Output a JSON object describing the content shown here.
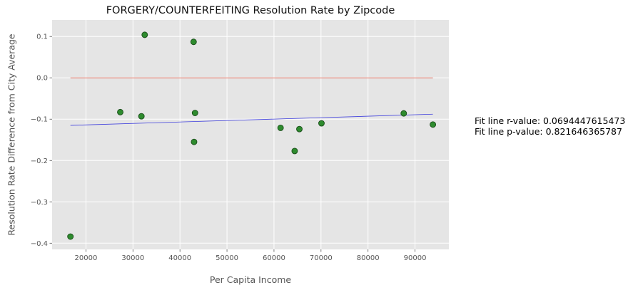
{
  "chart_data": {
    "type": "scatter",
    "title": "FORGERY/COUNTERFEITING Resolution Rate by Zipcode",
    "xlabel": "Per Capita Income",
    "ylabel": "Resolution Rate Difference from City Average",
    "xlim": [
      12800,
      97200
    ],
    "ylim": [
      -0.415,
      0.14
    ],
    "x_ticks": [
      20000,
      30000,
      40000,
      50000,
      60000,
      70000,
      80000,
      90000
    ],
    "x_tick_labels": [
      "20000",
      "30000",
      "40000",
      "50000",
      "60000",
      "70000",
      "80000",
      "90000"
    ],
    "y_ticks": [
      0.1,
      0.0,
      -0.1,
      -0.2,
      -0.3,
      -0.4
    ],
    "y_tick_labels": [
      "0.1",
      "0.0",
      "−0.1",
      "−0.2",
      "−0.3",
      "−0.4"
    ],
    "grid": true,
    "points": [
      {
        "x": 16700,
        "y": -0.384
      },
      {
        "x": 27300,
        "y": -0.083
      },
      {
        "x": 31800,
        "y": -0.093
      },
      {
        "x": 32500,
        "y": 0.104
      },
      {
        "x": 42900,
        "y": 0.087
      },
      {
        "x": 43000,
        "y": -0.155
      },
      {
        "x": 43200,
        "y": -0.085
      },
      {
        "x": 61400,
        "y": -0.121
      },
      {
        "x": 64400,
        "y": -0.177
      },
      {
        "x": 65400,
        "y": -0.124
      },
      {
        "x": 70100,
        "y": -0.11
      },
      {
        "x": 87600,
        "y": -0.086
      },
      {
        "x": 93800,
        "y": -0.113
      }
    ],
    "reference_line": {
      "x": [
        16700,
        93800
      ],
      "y": [
        0.0,
        0.0
      ],
      "color": "#e24a33"
    },
    "fit_line": {
      "x": [
        16700,
        93800
      ],
      "y": [
        -0.115,
        -0.088
      ],
      "color": "#4040dd"
    },
    "point_color": "#2e8b2e",
    "point_edge_color": "#1a4d1a",
    "background_color": "#e5e5e5",
    "annotation_lines": [
      "Fit line r-value: 0.0694447615473",
      "Fit line p-value: 0.821646365787"
    ]
  }
}
